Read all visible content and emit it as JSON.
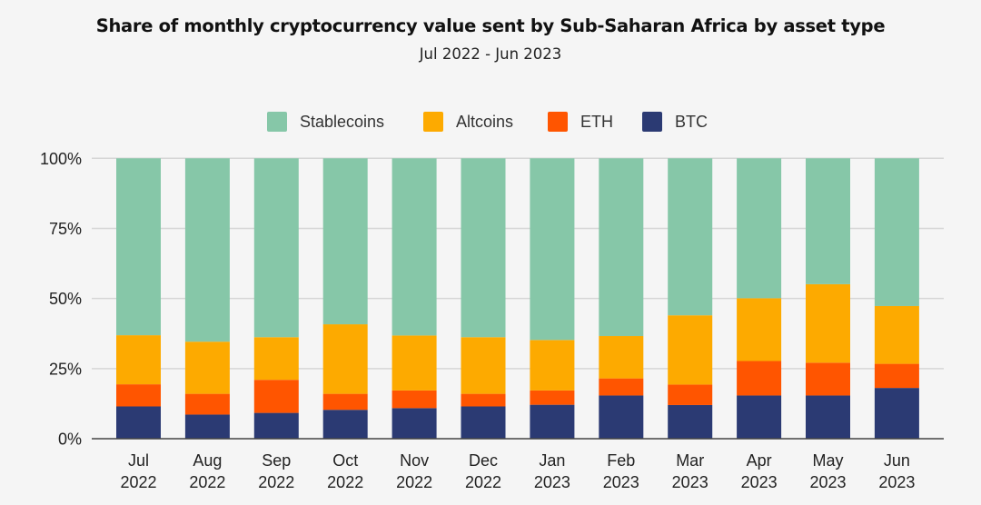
{
  "chart_data": {
    "type": "bar",
    "stacked": true,
    "title": "Share of monthly cryptocurrency value sent by Sub-Saharan Africa by asset type",
    "subtitle": "Jul 2022 - Jun 2023",
    "xlabel": "",
    "ylabel": "",
    "ylim": [
      0,
      100
    ],
    "yticks": [
      "0%",
      "25%",
      "50%",
      "75%",
      "100%"
    ],
    "ytick_values": [
      0,
      25,
      50,
      75,
      100
    ],
    "grid": true,
    "legend_position": "top-center",
    "categories": [
      {
        "month": "Jul",
        "year": "2022"
      },
      {
        "month": "Aug",
        "year": "2022"
      },
      {
        "month": "Sep",
        "year": "2022"
      },
      {
        "month": "Oct",
        "year": "2022"
      },
      {
        "month": "Nov",
        "year": "2022"
      },
      {
        "month": "Dec",
        "year": "2022"
      },
      {
        "month": "Jan",
        "year": "2023"
      },
      {
        "month": "Feb",
        "year": "2023"
      },
      {
        "month": "Mar",
        "year": "2023"
      },
      {
        "month": "Apr",
        "year": "2023"
      },
      {
        "month": "May",
        "year": "2023"
      },
      {
        "month": "Jun",
        "year": "2023"
      }
    ],
    "series": [
      {
        "name": "BTC",
        "color": "#2b3a73",
        "values": [
          11.5,
          8.6,
          9.2,
          10.3,
          10.9,
          11.5,
          12.1,
          15.4,
          12.0,
          15.4,
          15.4,
          18.1
        ]
      },
      {
        "name": "ETH",
        "color": "#ff5500",
        "values": [
          7.9,
          7.4,
          11.8,
          5.7,
          6.3,
          4.5,
          5.1,
          6.1,
          7.3,
          12.3,
          11.7,
          8.6
        ]
      },
      {
        "name": "Altcoins",
        "color": "#fdaa00",
        "values": [
          17.5,
          18.6,
          15.2,
          24.8,
          19.6,
          20.2,
          18.0,
          15.1,
          24.7,
          22.4,
          28.0,
          20.6
        ]
      },
      {
        "name": "Stablecoins",
        "color": "#86c7a8",
        "values": [
          63.1,
          65.4,
          63.8,
          59.2,
          63.2,
          63.8,
          64.8,
          63.4,
          56.0,
          49.9,
          44.9,
          52.7
        ]
      }
    ],
    "legend_order": [
      "Stablecoins",
      "Altcoins",
      "ETH",
      "BTC"
    ]
  }
}
